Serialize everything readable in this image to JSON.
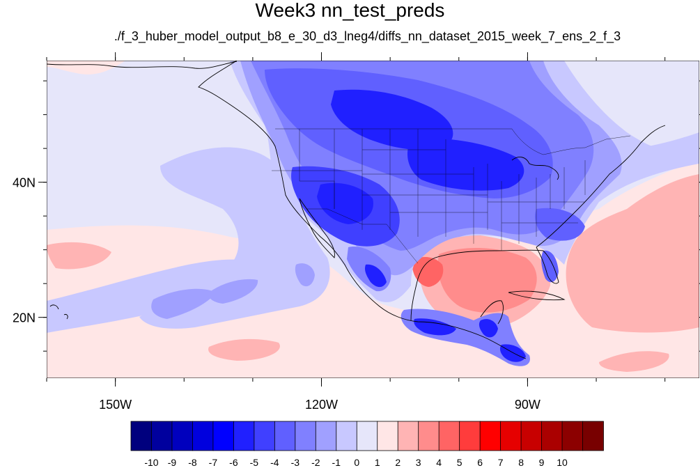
{
  "title": "Week3 nn_test_preds",
  "subtitle": "./f_3_huber_model_output_b8_e_30_d3_lneg4/diffs_nn_dataset_2015_week_7_ens_2_f_3",
  "map": {
    "projection": "cylindrical-equidistant",
    "lon_range": [
      -160,
      -65
    ],
    "lat_range": [
      11,
      58
    ],
    "lon_ticks": [
      {
        "value": -150,
        "label": "150W"
      },
      {
        "value": -120,
        "label": "120W"
      },
      {
        "value": -90,
        "label": "90W"
      }
    ],
    "lat_ticks": [
      {
        "value": 40,
        "label": "40N"
      },
      {
        "value": 20,
        "label": "20N"
      }
    ],
    "background_fill": "#e6e6fa"
  },
  "colorbar": {
    "colors": [
      "#00007e",
      "#00009e",
      "#0000be",
      "#0000de",
      "#0000ff",
      "#2020ff",
      "#4040ff",
      "#6060ff",
      "#8080ff",
      "#a0a0ff",
      "#c8c8ff",
      "#e6e6fa",
      "#ffe6e6",
      "#ffb4b4",
      "#ff8c8c",
      "#ff6464",
      "#ff3c3c",
      "#ff0000",
      "#e60000",
      "#c80000",
      "#aa0000",
      "#8c0000",
      "#780000"
    ],
    "labels": [
      "-10",
      "-9",
      "-8",
      "-7",
      "-6",
      "-5",
      "-4",
      "-3",
      "-2",
      "-1",
      "0",
      "1",
      "2",
      "3",
      "4",
      "5",
      "6",
      "7",
      "8",
      "9",
      "10"
    ]
  }
}
